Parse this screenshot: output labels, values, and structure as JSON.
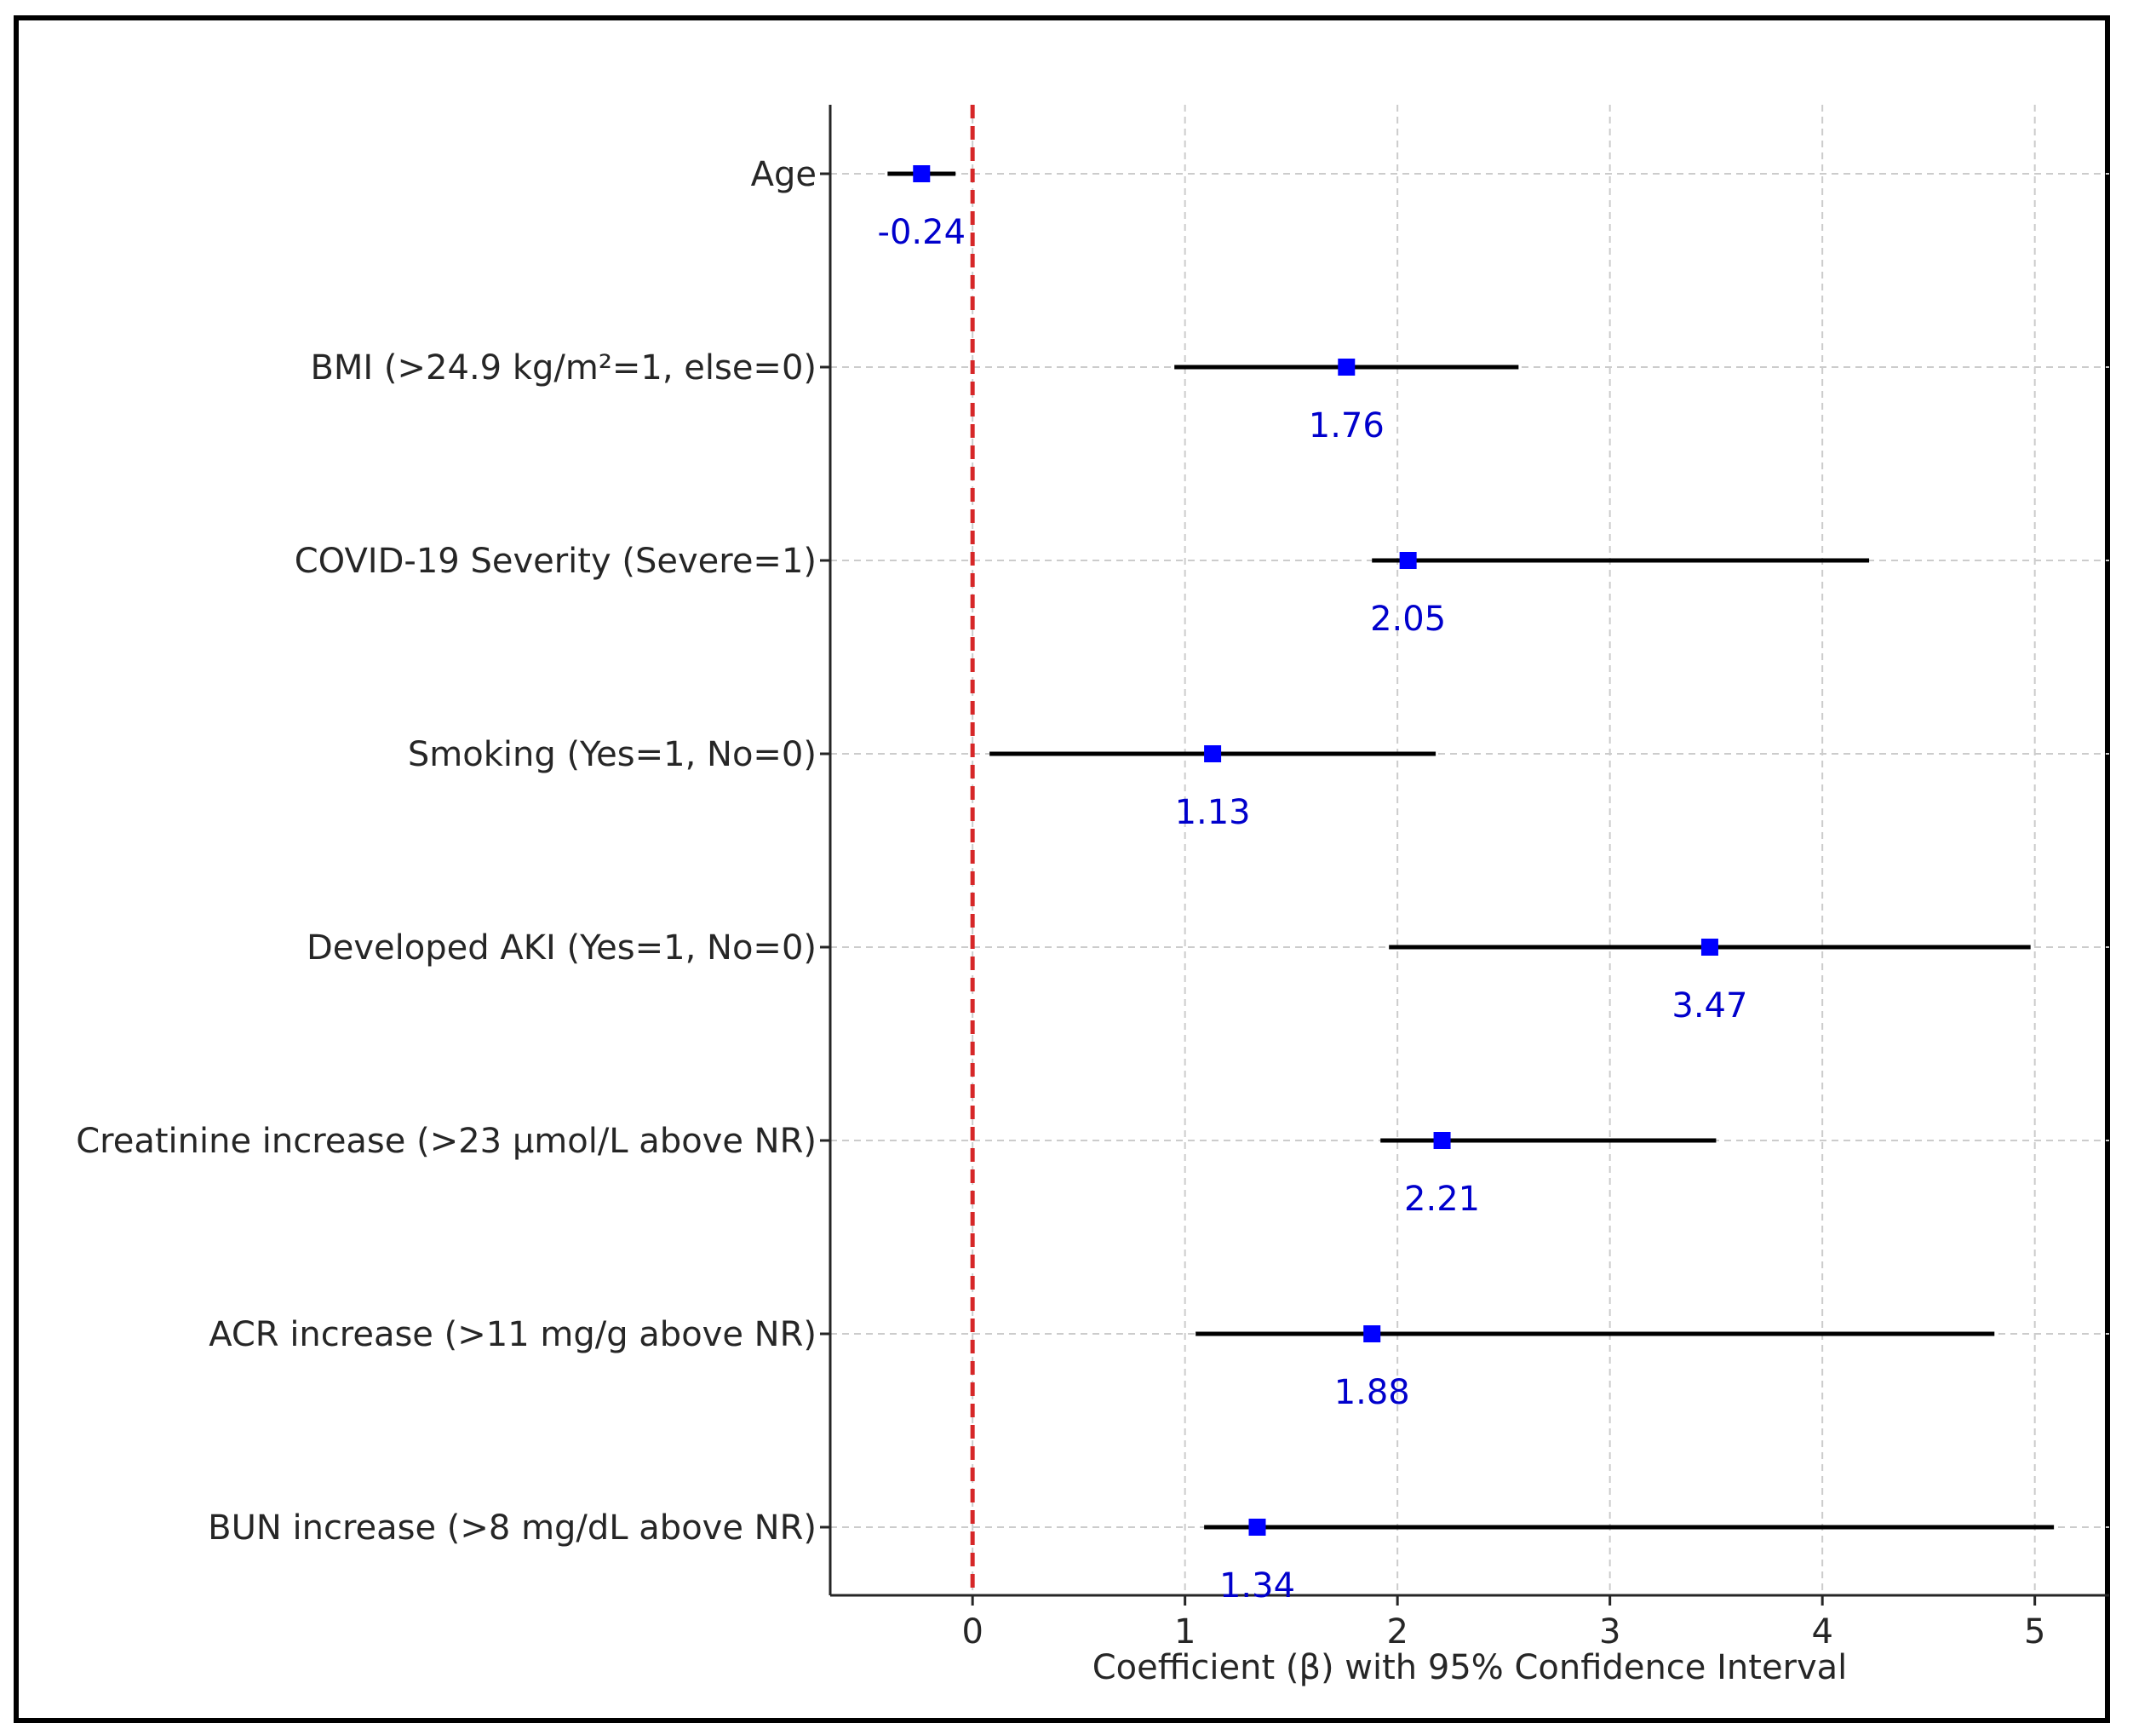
{
  "chart_data": {
    "type": "forest",
    "xlabel": "Coefficient (β) with 95% Confidence Interval",
    "xlim": [
      -0.67,
      5.35
    ],
    "xticks": [
      0,
      1,
      2,
      3,
      4,
      5
    ],
    "xtick_labels": [
      "0",
      "1",
      "2",
      "3",
      "4",
      "5"
    ],
    "reference_line": {
      "x": 0,
      "style": "dashed",
      "color": "#d62728"
    },
    "grid": true,
    "point_color": "#0000ff",
    "ci_color": "#000000",
    "label_color": "#0000cc",
    "rows": [
      {
        "label": "Age",
        "estimate": -0.24,
        "estimate_label": "-0.24",
        "ci_low": -0.4,
        "ci_high": -0.08
      },
      {
        "label": "BMI (>24.9 kg/m²=1, else=0)",
        "estimate": 1.76,
        "estimate_label": "1.76",
        "ci_low": 0.95,
        "ci_high": 2.57
      },
      {
        "label": "COVID-19 Severity (Severe=1)",
        "estimate": 2.05,
        "estimate_label": "2.05",
        "ci_low": 1.88,
        "ci_high": 4.22
      },
      {
        "label": "Smoking (Yes=1, No=0)",
        "estimate": 1.13,
        "estimate_label": "1.13",
        "ci_low": 0.08,
        "ci_high": 2.18
      },
      {
        "label": "Developed AKI (Yes=1, No=0)",
        "estimate": 3.47,
        "estimate_label": "3.47",
        "ci_low": 1.96,
        "ci_high": 4.98
      },
      {
        "label": "Creatinine increase (>23 μmol/L above NR)",
        "estimate": 2.21,
        "estimate_label": "2.21",
        "ci_low": 1.92,
        "ci_high": 3.5
      },
      {
        "label": "ACR increase (>11 mg/g above NR)",
        "estimate": 1.88,
        "estimate_label": "1.88",
        "ci_low": 1.05,
        "ci_high": 4.81
      },
      {
        "label": "BUN increase (>8 mg/dL above NR)",
        "estimate": 1.34,
        "estimate_label": "1.34",
        "ci_low": 1.09,
        "ci_high": 5.09
      }
    ]
  }
}
